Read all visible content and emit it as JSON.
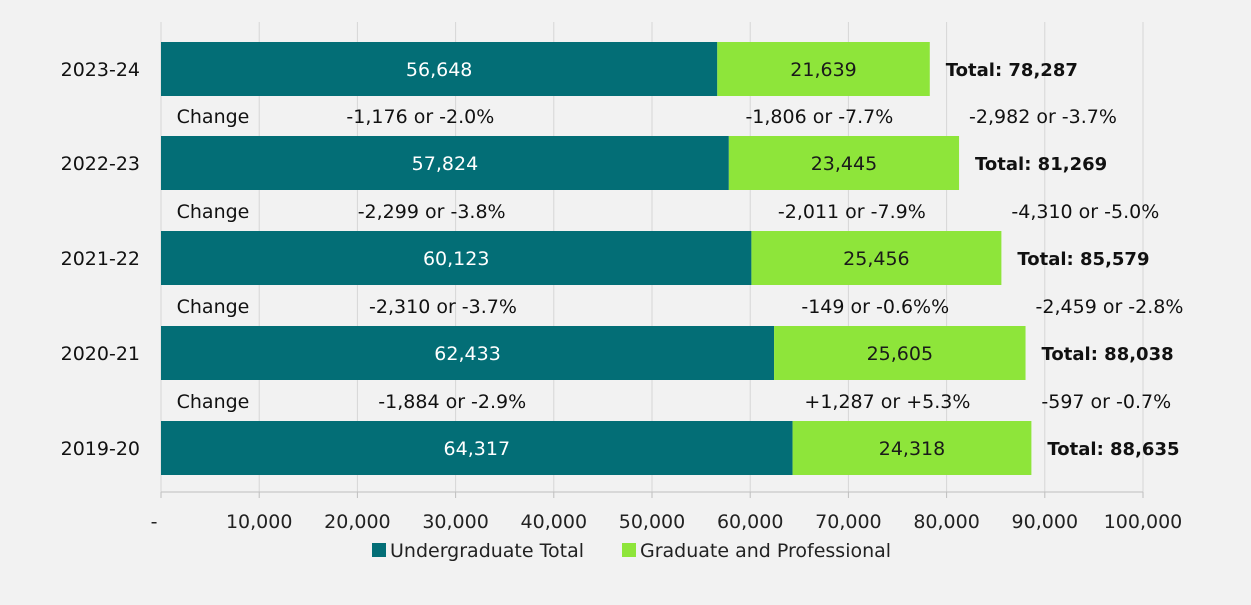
{
  "chart_data": {
    "type": "bar",
    "orientation": "horizontal",
    "stacked": true,
    "categories": [
      "2023-24",
      "2022-23",
      "2021-22",
      "2020-21",
      "2019-20"
    ],
    "series": [
      {
        "name": "Undergraduate Total",
        "color": "#036e76",
        "values": [
          56648,
          57824,
          60123,
          62433,
          64317
        ],
        "labels": [
          "56,648",
          "57,824",
          "60,123",
          "62,433",
          "64,317"
        ],
        "label_color": "#ffffff"
      },
      {
        "name": "Graduate and Professional",
        "color": "#8ee53a",
        "values": [
          21639,
          23445,
          25456,
          25605,
          24318
        ],
        "labels": [
          "21,639",
          "23,445",
          "25,456",
          "25,605",
          "24,318"
        ],
        "label_color": "#1a1a1a"
      }
    ],
    "totals": [
      "Total: 78,287",
      "Total: 81,269",
      "Total: 85,579",
      "Total: 88,038",
      "Total: 88,635"
    ],
    "change_rows": [
      {
        "label": "Change",
        "undergraduate": "-1,176 or -2.0%",
        "graduate": "-1,806 or -7.7%",
        "total": "-2,982 or -3.7%"
      },
      {
        "label": "Change",
        "undergraduate": "-2,299 or -3.8%",
        "graduate": "-2,011 or -7.9%",
        "total": "-4,310 or -5.0%"
      },
      {
        "label": "Change",
        "undergraduate": "-2,310 or -3.7%",
        "graduate": "-149 or -0.6%%",
        "total": "-2,459 or -2.8%"
      },
      {
        "label": "Change",
        "undergraduate": "-1,884 or -2.9%",
        "graduate": "+1,287 or +5.3%",
        "total": "-597 or -0.7%"
      }
    ],
    "x_ticks": [
      "-",
      "10,000",
      "20,000",
      "30,000",
      "40,000",
      "50,000",
      "60,000",
      "70,000",
      "80,000",
      "90,000",
      "100,000"
    ],
    "xlim": [
      0,
      100000
    ],
    "grid": true,
    "legend_position": "bottom"
  }
}
